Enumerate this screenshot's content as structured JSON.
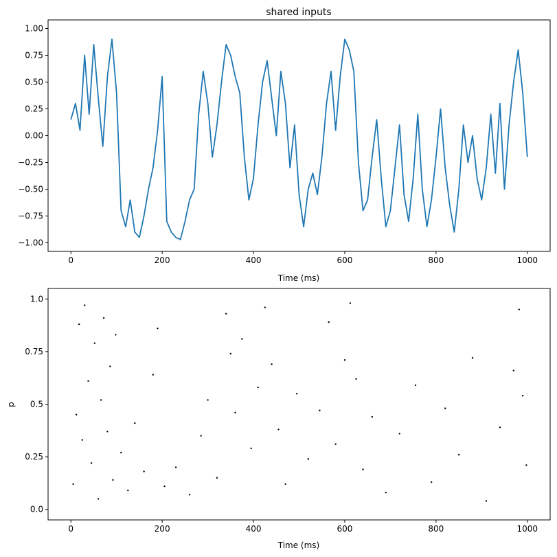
{
  "chart_data": [
    {
      "type": "line",
      "title": "shared inputs",
      "xlabel": "Time (ms)",
      "ylabel": "",
      "xlim": [
        -50,
        1050
      ],
      "ylim": [
        -1.08,
        1.08
      ],
      "xticks": [
        0,
        200,
        400,
        600,
        800,
        1000
      ],
      "xtick_labels": [
        "0",
        "200",
        "400",
        "600",
        "800",
        "1000"
      ],
      "yticks": [
        -1.0,
        -0.75,
        -0.5,
        -0.25,
        0.0,
        0.25,
        0.5,
        0.75,
        1.0
      ],
      "ytick_labels": [
        "−1.00",
        "−0.75",
        "−0.50",
        "−0.25",
        "0.00",
        "0.25",
        "0.50",
        "0.75",
        "1.00"
      ],
      "grid": false,
      "color": "#1f77b4",
      "series": [
        {
          "x": [
            0,
            10,
            20,
            30,
            40,
            50,
            60,
            70,
            80,
            90,
            100,
            110,
            120,
            130,
            140,
            150,
            160,
            170,
            180,
            190,
            200,
            210,
            220,
            230,
            240,
            250,
            260,
            270,
            280,
            290,
            300,
            310,
            320,
            330,
            340,
            350,
            360,
            370,
            380,
            390,
            400,
            410,
            420,
            430,
            440,
            450,
            460,
            470,
            480,
            490,
            500,
            510,
            520,
            530,
            540,
            550,
            560,
            570,
            580,
            590,
            600,
            610,
            620,
            630,
            640,
            650,
            660,
            670,
            680,
            690,
            700,
            710,
            720,
            730,
            740,
            750,
            760,
            770,
            780,
            790,
            800,
            810,
            820,
            830,
            840,
            850,
            860,
            870,
            880,
            890,
            900,
            910,
            920,
            930,
            940,
            950,
            960,
            970,
            980,
            990,
            1000
          ],
          "y": [
            0.15,
            0.3,
            0.05,
            0.75,
            0.2,
            0.85,
            0.35,
            -0.1,
            0.55,
            0.9,
            0.4,
            -0.7,
            -0.85,
            -0.6,
            -0.9,
            -0.95,
            -0.75,
            -0.5,
            -0.3,
            0.05,
            0.55,
            -0.8,
            -0.9,
            -0.95,
            -0.97,
            -0.8,
            -0.6,
            -0.5,
            0.2,
            0.6,
            0.3,
            -0.2,
            0.1,
            0.5,
            0.85,
            0.75,
            0.55,
            0.4,
            -0.2,
            -0.6,
            -0.4,
            0.1,
            0.5,
            0.7,
            0.35,
            0.0,
            0.6,
            0.3,
            -0.3,
            0.1,
            -0.55,
            -0.85,
            -0.5,
            -0.35,
            -0.55,
            -0.2,
            0.3,
            0.6,
            0.05,
            0.55,
            0.9,
            0.8,
            0.6,
            -0.25,
            -0.7,
            -0.6,
            -0.2,
            0.15,
            -0.4,
            -0.85,
            -0.7,
            -0.3,
            0.1,
            -0.55,
            -0.8,
            -0.4,
            0.2,
            -0.5,
            -0.85,
            -0.6,
            -0.2,
            0.25,
            -0.3,
            -0.65,
            -0.9,
            -0.5,
            0.1,
            -0.25,
            0.0,
            -0.4,
            -0.6,
            -0.3,
            0.2,
            -0.35,
            0.3,
            -0.5,
            0.1,
            0.5,
            0.8,
            0.4,
            -0.2
          ]
        }
      ]
    },
    {
      "type": "scatter",
      "title": "",
      "xlabel": "Time (ms)",
      "ylabel": "p",
      "xlim": [
        -50,
        1050
      ],
      "ylim": [
        -0.05,
        1.05
      ],
      "xticks": [
        0,
        200,
        400,
        600,
        800,
        1000
      ],
      "xtick_labels": [
        "0",
        "200",
        "400",
        "600",
        "800",
        "1000"
      ],
      "yticks": [
        0.0,
        0.25,
        0.5,
        0.75,
        1.0
      ],
      "ytick_labels": [
        "0.0",
        "0.25",
        "0.5",
        "0.75",
        "1.0"
      ],
      "grid": false,
      "color": "#000000",
      "marker_size": 1.2,
      "series": [
        {
          "points": [
            [
              5,
              0.12
            ],
            [
              12,
              0.45
            ],
            [
              18,
              0.88
            ],
            [
              25,
              0.33
            ],
            [
              30,
              0.97
            ],
            [
              38,
              0.61
            ],
            [
              45,
              0.22
            ],
            [
              52,
              0.79
            ],
            [
              60,
              0.05
            ],
            [
              66,
              0.52
            ],
            [
              72,
              0.91
            ],
            [
              80,
              0.37
            ],
            [
              86,
              0.68
            ],
            [
              92,
              0.14
            ],
            [
              98,
              0.83
            ],
            [
              110,
              0.27
            ],
            [
              125,
              0.09
            ],
            [
              140,
              0.41
            ],
            [
              160,
              0.18
            ],
            [
              180,
              0.64
            ],
            [
              190,
              0.86
            ],
            [
              205,
              0.11
            ],
            [
              230,
              0.2
            ],
            [
              260,
              0.07
            ],
            [
              285,
              0.35
            ],
            [
              300,
              0.52
            ],
            [
              320,
              0.15
            ],
            [
              340,
              0.93
            ],
            [
              350,
              0.74
            ],
            [
              360,
              0.46
            ],
            [
              375,
              0.81
            ],
            [
              395,
              0.29
            ],
            [
              410,
              0.58
            ],
            [
              425,
              0.96
            ],
            [
              440,
              0.69
            ],
            [
              455,
              0.38
            ],
            [
              470,
              0.12
            ],
            [
              495,
              0.55
            ],
            [
              520,
              0.24
            ],
            [
              545,
              0.47
            ],
            [
              565,
              0.89
            ],
            [
              580,
              0.31
            ],
            [
              600,
              0.71
            ],
            [
              612,
              0.98
            ],
            [
              625,
              0.62
            ],
            [
              640,
              0.19
            ],
            [
              660,
              0.44
            ],
            [
              690,
              0.08
            ],
            [
              720,
              0.36
            ],
            [
              755,
              0.59
            ],
            [
              790,
              0.13
            ],
            [
              820,
              0.48
            ],
            [
              850,
              0.26
            ],
            [
              880,
              0.72
            ],
            [
              910,
              0.04
            ],
            [
              940,
              0.39
            ],
            [
              970,
              0.66
            ],
            [
              982,
              0.95
            ],
            [
              990,
              0.54
            ],
            [
              998,
              0.21
            ]
          ]
        }
      ]
    }
  ]
}
